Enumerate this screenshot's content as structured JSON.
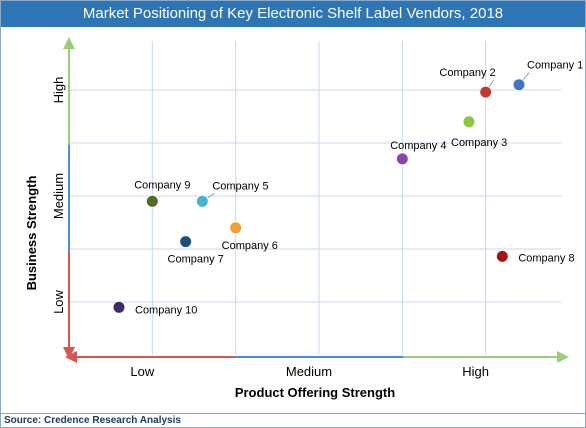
{
  "title": "Market Positioning of Key Electronic Shelf Label Vendors, 2018",
  "source": "Source: Credence Research Analysis",
  "colors": {
    "title_bg": "#2e75b6",
    "grid": "#c5d9ee",
    "axis_red": "#d9534f",
    "axis_blue": "#4a90d9",
    "axis_green": "#9acd7a"
  },
  "chart_data": {
    "type": "scatter",
    "xlabel": "Product Offering Strength",
    "ylabel": "Business Strength",
    "x_categories": [
      "Low",
      "Medium",
      "High"
    ],
    "y_categories": [
      "Low",
      "Medium",
      "High"
    ],
    "xlim": [
      0,
      3
    ],
    "ylim": [
      0,
      3
    ],
    "grid": true,
    "legend": "none",
    "points": [
      {
        "label": "Company 1",
        "x": 2.7,
        "y": 2.55,
        "color": "#4472c4"
      },
      {
        "label": "Company 2",
        "x": 2.5,
        "y": 2.48,
        "color": "#c0392b"
      },
      {
        "label": "Company 3",
        "x": 2.4,
        "y": 2.2,
        "color": "#8dc63f"
      },
      {
        "label": "Company 4",
        "x": 2.0,
        "y": 1.85,
        "color": "#8e44ad"
      },
      {
        "label": "Company 5",
        "x": 0.8,
        "y": 1.45,
        "color": "#45b3d4"
      },
      {
        "label": "Company 6",
        "x": 1.0,
        "y": 1.2,
        "color": "#f39c33"
      },
      {
        "label": "Company 7",
        "x": 0.7,
        "y": 1.07,
        "color": "#1f4e79"
      },
      {
        "label": "Company 8",
        "x": 2.6,
        "y": 0.93,
        "color": "#a31515"
      },
      {
        "label": "Company 9",
        "x": 0.5,
        "y": 1.45,
        "color": "#4e6b2a"
      },
      {
        "label": "Company 10",
        "x": 0.3,
        "y": 0.45,
        "color": "#3c2a6b"
      }
    ]
  }
}
